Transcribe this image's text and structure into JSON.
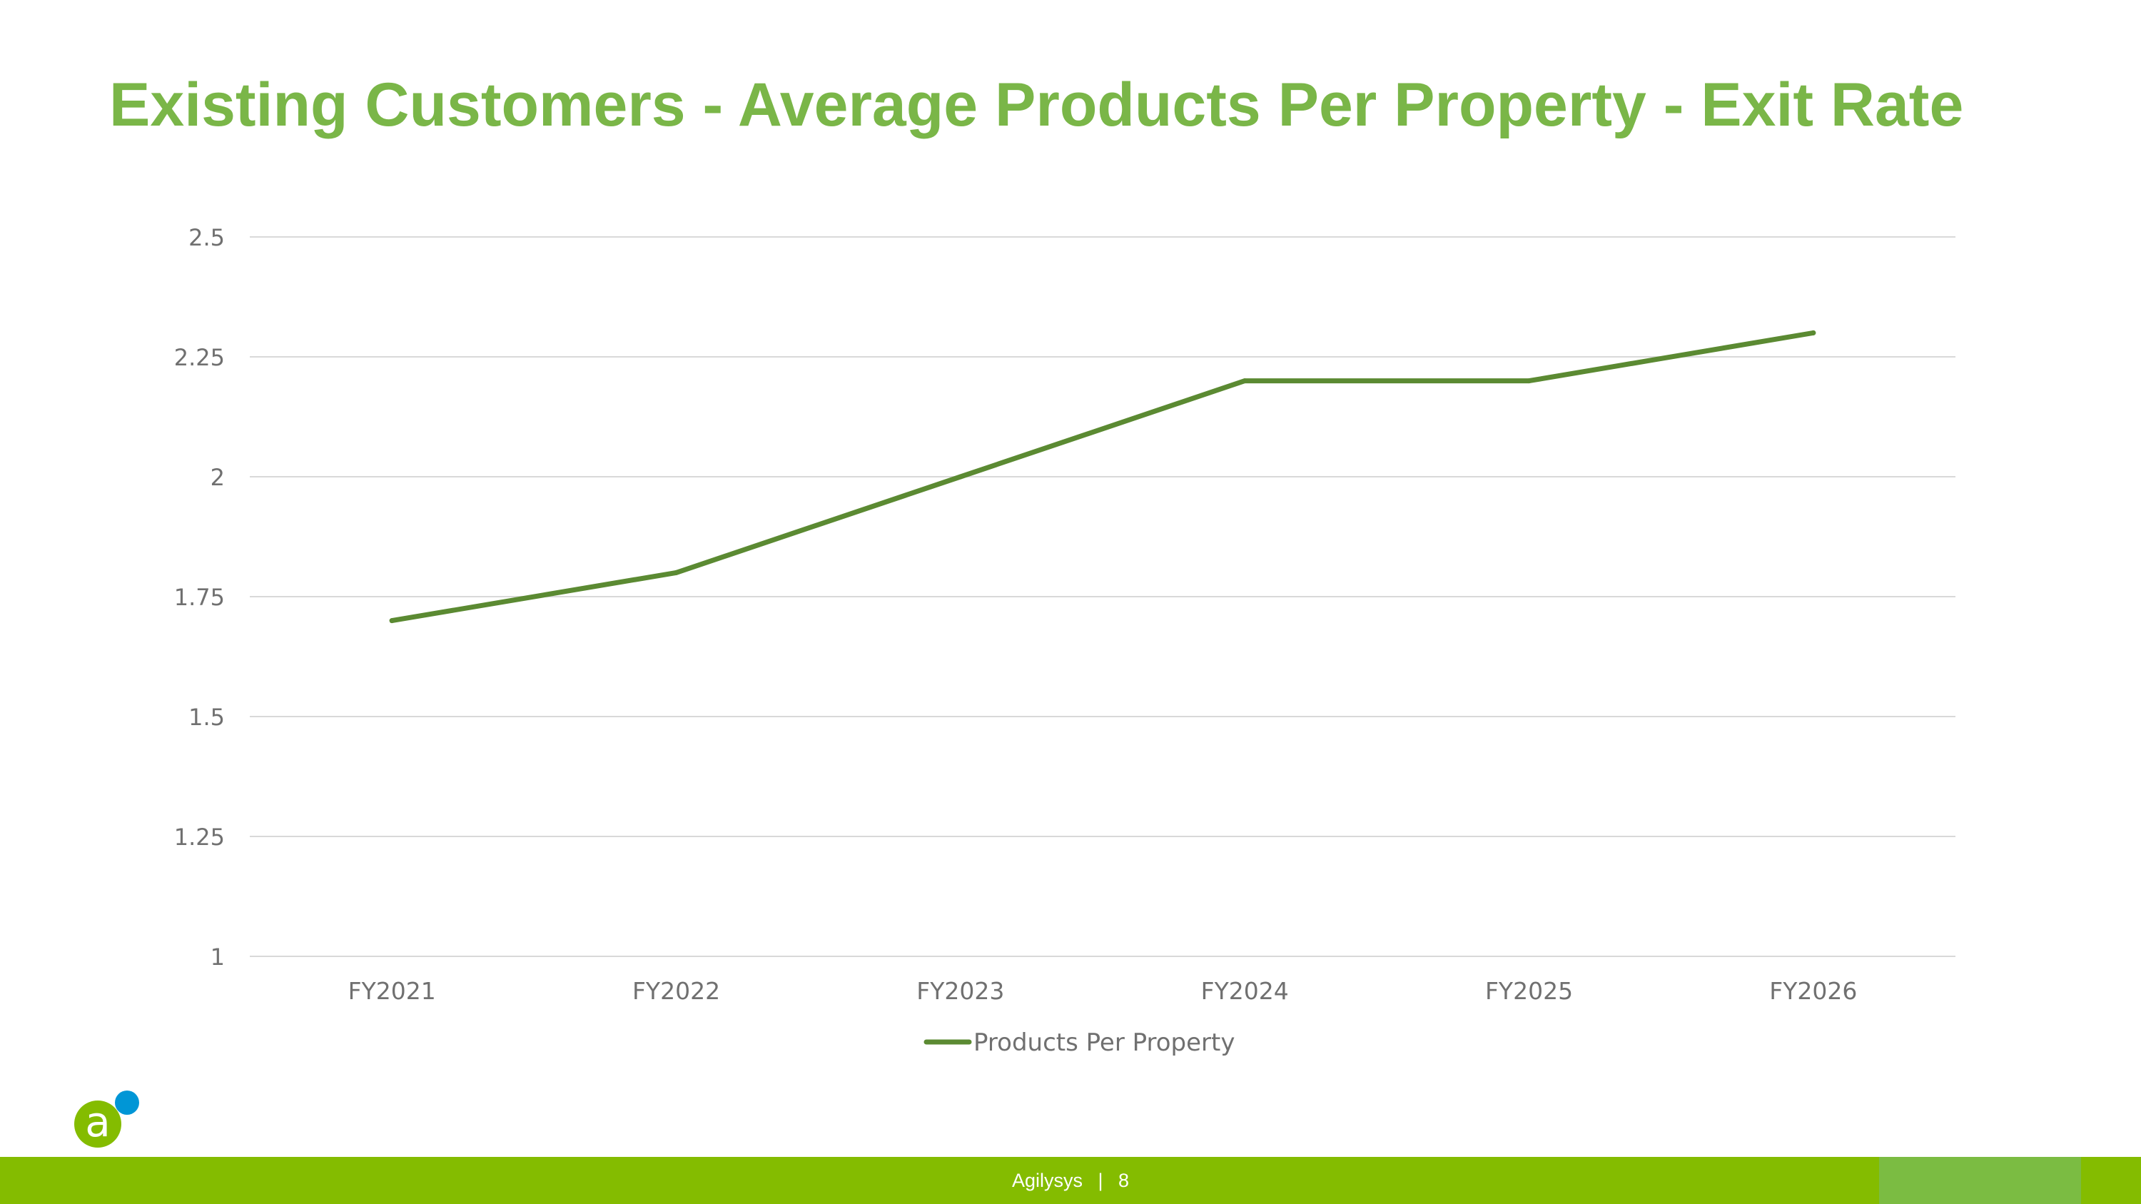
{
  "slide": {
    "title": "Existing Customers - Average Products Per Property - Exit Rate",
    "footer": {
      "company": "Agilysys",
      "separator": "|",
      "page_number": "8"
    },
    "logo": {
      "glyph": "a",
      "name": "agilysys-logo-icon"
    }
  },
  "colors": {
    "title": "#7ab648",
    "line": "#5b8a32",
    "grid": "#d9d9d9",
    "axis_text": "#707070",
    "footer_bar": "#84bc00",
    "footer_accent": "#7bbc42",
    "logo_green": "#84bc00",
    "logo_blue": "#0096d6"
  },
  "chart_data": {
    "type": "line",
    "categories": [
      "FY2021",
      "FY2022",
      "FY2023",
      "FY2024",
      "FY2025",
      "FY2026"
    ],
    "series": [
      {
        "name": "Products Per Property",
        "values": [
          1.7,
          1.8,
          2.0,
          2.2,
          2.2,
          2.3
        ]
      }
    ],
    "ylim": [
      1,
      2.5
    ],
    "yticks": [
      "1",
      "1.25",
      "1.5",
      "1.75",
      "2",
      "2.25",
      "2.5"
    ],
    "grid": true,
    "legend_position": "bottom"
  }
}
